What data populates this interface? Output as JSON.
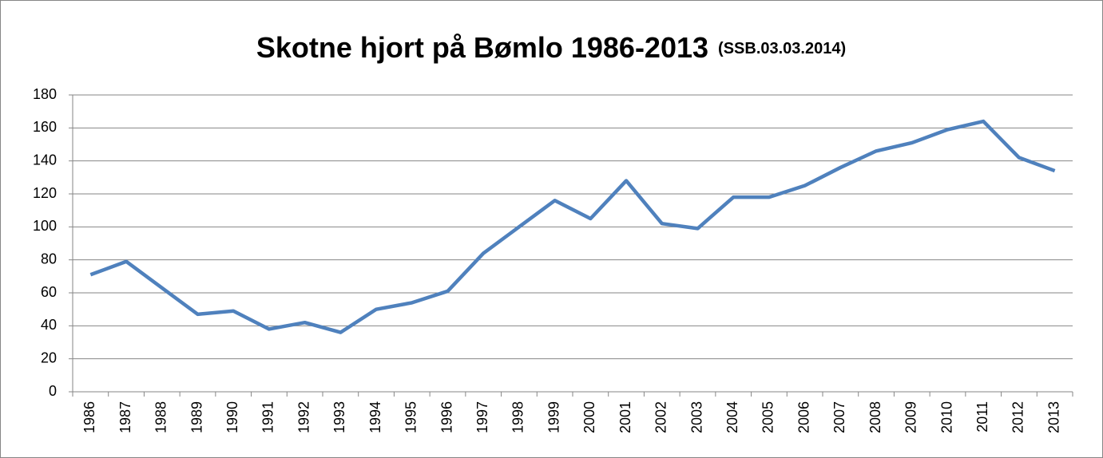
{
  "chart_data": {
    "type": "line",
    "title": "Skotne hjort på Bømlo 1986-2013",
    "subtitle": "(SSB.03.03.2014)",
    "categories": [
      "1986",
      "1987",
      "1988",
      "1989",
      "1990",
      "1991",
      "1992",
      "1993",
      "1994",
      "1995",
      "1996",
      "1997",
      "1998",
      "1999",
      "2000",
      "2001",
      "2002",
      "2003",
      "2004",
      "2005",
      "2006",
      "2007",
      "2008",
      "2009",
      "2010",
      "2011",
      "2012",
      "2013"
    ],
    "series": [
      {
        "name": "Skotne hjort",
        "color": "#4f81bd",
        "values": [
          71,
          79,
          63,
          47,
          49,
          38,
          42,
          36,
          50,
          54,
          61,
          84,
          100,
          116,
          105,
          128,
          102,
          99,
          118,
          118,
          125,
          136,
          146,
          151,
          159,
          164,
          142,
          134
        ]
      }
    ],
    "ylim": [
      0,
      180
    ],
    "yticks": [
      0,
      20,
      40,
      60,
      80,
      100,
      120,
      140,
      160,
      180
    ],
    "grid": true
  }
}
